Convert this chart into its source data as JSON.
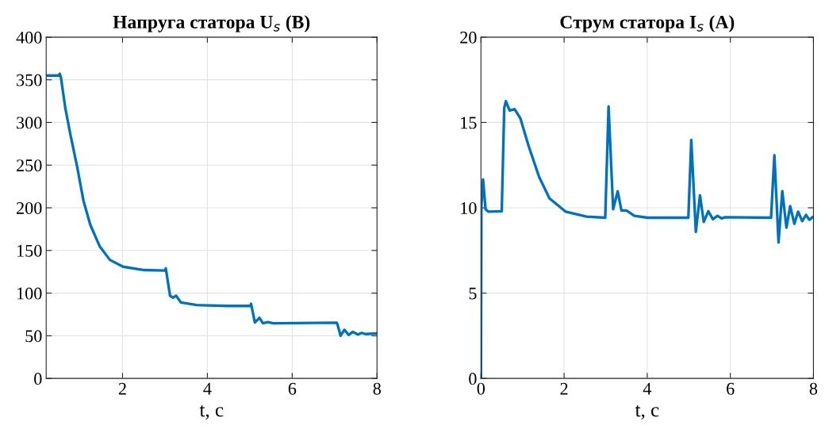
{
  "chart_data": [
    {
      "type": "line",
      "title": "Напруга статора U$_{s}$ (В)",
      "xlabel": "t, с",
      "grid": true,
      "xlim": [
        0.2,
        8
      ],
      "ylim": [
        0,
        400
      ],
      "xticks": [
        2,
        4,
        6,
        8
      ],
      "yticks": [
        0,
        50,
        100,
        150,
        200,
        250,
        300,
        350,
        400
      ],
      "series": [
        {
          "color": "#0072bd",
          "x": [
            0.21,
            0.5,
            0.52,
            0.55,
            0.65,
            0.77,
            0.93,
            1.08,
            1.24,
            1.46,
            1.7,
            2.01,
            2.51,
            3.0,
            3.02,
            3.12,
            3.19,
            3.26,
            3.38,
            3.75,
            4.5,
            5.01,
            5.03,
            5.12,
            5.23,
            5.31,
            5.43,
            5.55,
            7.05,
            7.07,
            7.14,
            7.23,
            7.33,
            7.43,
            7.55,
            7.64,
            7.73,
            7.98
          ],
          "values": [
            355,
            355,
            357,
            352,
            317,
            286,
            248,
            208,
            180,
            155,
            139,
            131,
            127,
            126.5,
            129,
            97,
            94.6,
            97,
            89,
            86,
            85,
            85,
            87.5,
            65.6,
            71,
            64.6,
            66,
            64.6,
            65.3,
            63,
            50,
            57,
            51,
            54.6,
            51.5,
            53.4,
            52,
            52.7
          ]
        }
      ]
    },
    {
      "type": "line",
      "title": "Струм статора I$_{s}$ (А)",
      "xlabel": "t, с",
      "grid": true,
      "xlim": [
        0,
        8
      ],
      "ylim": [
        0,
        20
      ],
      "xticks": [
        0,
        2,
        4,
        6,
        8
      ],
      "yticks": [
        0,
        5,
        10,
        15,
        20
      ],
      "series": [
        {
          "color": "#0072bd",
          "x": [
            0,
            0.01,
            0.05,
            0.11,
            0.18,
            0.5,
            0.56,
            0.6,
            0.69,
            0.81,
            0.95,
            1.14,
            1.4,
            1.65,
            2.04,
            2.54,
            2.99,
            3.07,
            3.18,
            3.29,
            3.38,
            3.5,
            3.69,
            4.01,
            4.99,
            5.06,
            5.17,
            5.27,
            5.36,
            5.47,
            5.58,
            5.69,
            5.79,
            5.88,
            6.98,
            7.06,
            7.16,
            7.25,
            7.35,
            7.44,
            7.54,
            7.63,
            7.73,
            7.82,
            7.9,
            7.98
          ],
          "values": [
            0,
            10.1,
            11.67,
            9.92,
            9.77,
            9.8,
            15.86,
            16.25,
            15.7,
            15.78,
            15.23,
            13.67,
            11.8,
            10.55,
            9.77,
            9.48,
            9.42,
            15.94,
            9.92,
            10.97,
            9.84,
            9.84,
            9.53,
            9.42,
            9.42,
            13.98,
            8.59,
            10.73,
            9.17,
            9.8,
            9.33,
            9.53,
            9.375,
            9.45,
            9.42,
            13.08,
            7.97,
            10.98,
            8.83,
            10.1,
            9.06,
            9.77,
            9.22,
            9.58,
            9.3,
            9.45
          ]
        }
      ]
    }
  ]
}
